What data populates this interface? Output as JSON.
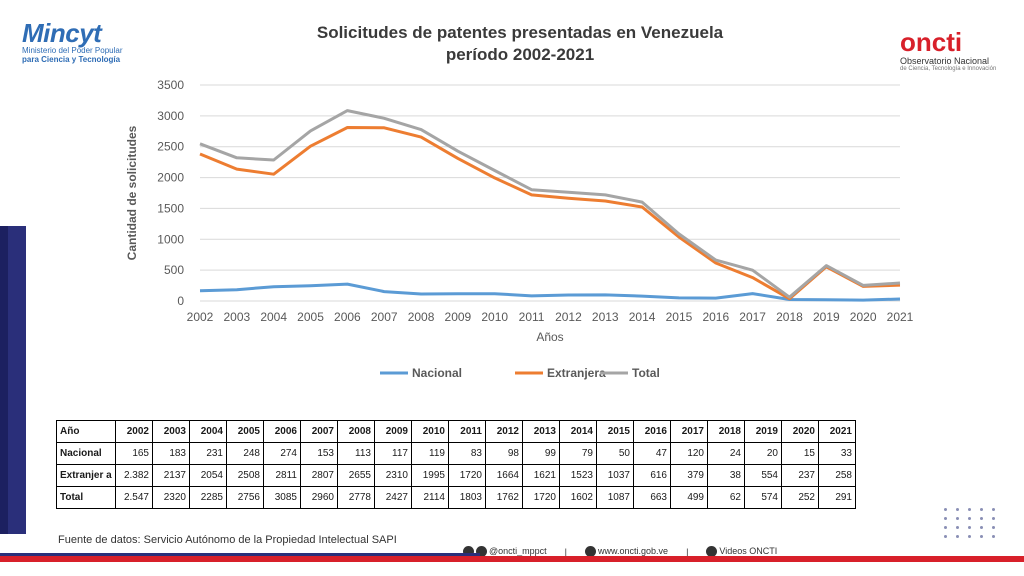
{
  "header": {
    "title_line1": "Solicitudes de patentes presentadas en Venezuela",
    "title_line2": "período 2002-2021"
  },
  "logo_left": {
    "main": "Mincyt",
    "sub": "Ministerio del Poder Popular",
    "tag": "para Ciencia y Tecnología"
  },
  "logo_right": {
    "main": "oncti",
    "sub": "Observatorio Nacional",
    "sub2": "de Ciencia, Tecnología e Innovación"
  },
  "chart_data": {
    "type": "line",
    "ylabel": "Cantidad de solicitudes",
    "xlabel": "Años",
    "ylim": [
      0,
      3500
    ],
    "yticks": [
      0,
      500,
      1000,
      1500,
      2000,
      2500,
      3000,
      3500
    ],
    "grid": true,
    "legend_position": "bottom",
    "x": [
      "2002",
      "2003",
      "2004",
      "2005",
      "2006",
      "2007",
      "2008",
      "2009",
      "2010",
      "2011",
      "2012",
      "2013",
      "2014",
      "2015",
      "2016",
      "2017",
      "2018",
      "2019",
      "2020",
      "2021"
    ],
    "series": [
      {
        "name": "Nacional",
        "color": "#5b9bd5",
        "values": [
          165,
          183,
          231,
          248,
          274,
          153,
          113,
          117,
          119,
          83,
          98,
          99,
          79,
          50,
          47,
          120,
          24,
          20,
          15,
          33
        ]
      },
      {
        "name": "Extranjera",
        "color": "#ed7d31",
        "values": [
          2382,
          2137,
          2054,
          2508,
          2811,
          2807,
          2655,
          2310,
          1995,
          1720,
          1664,
          1621,
          1523,
          1037,
          616,
          379,
          38,
          554,
          237,
          258
        ]
      },
      {
        "name": "Total",
        "color": "#a5a5a5",
        "values": [
          2547,
          2320,
          2285,
          2756,
          3085,
          2960,
          2778,
          2427,
          2114,
          1803,
          1762,
          1720,
          1602,
          1087,
          663,
          499,
          62,
          574,
          252,
          291
        ]
      }
    ]
  },
  "table": {
    "header": [
      "Año",
      "2002",
      "2003",
      "2004",
      "2005",
      "2006",
      "2007",
      "2008",
      "2009",
      "2010",
      "2011",
      "2012",
      "2013",
      "2014",
      "2015",
      "2016",
      "2017",
      "2018",
      "2019",
      "2020",
      "2021"
    ],
    "rows": [
      [
        "Nacional",
        "165",
        "183",
        "231",
        "248",
        "274",
        "153",
        "113",
        "117",
        "119",
        "83",
        "98",
        "99",
        "79",
        "50",
        "47",
        "120",
        "24",
        "20",
        "15",
        "33"
      ],
      [
        "Extranjer a",
        "2.382",
        "2137",
        "2054",
        "2508",
        "2811",
        "2807",
        "2655",
        "2310",
        "1995",
        "1720",
        "1664",
        "1621",
        "1523",
        "1037",
        "616",
        "379",
        "38",
        "554",
        "237",
        "258"
      ],
      [
        "Total",
        "2.547",
        "2320",
        "2285",
        "2756",
        "3085",
        "2960",
        "2778",
        "2427",
        "2114",
        "1803",
        "1762",
        "1720",
        "1602",
        "1087",
        "663",
        "499",
        "62",
        "574",
        "252",
        "291"
      ]
    ]
  },
  "source": "Fuente de datos: Servicio Autónomo de la Propiedad Intelectual SAPI",
  "footer": {
    "social": "@oncti_mppct",
    "sep1": "|",
    "web": "www.oncti.gob.ve",
    "sep2": "|",
    "videos": "Videos ONCTI"
  }
}
